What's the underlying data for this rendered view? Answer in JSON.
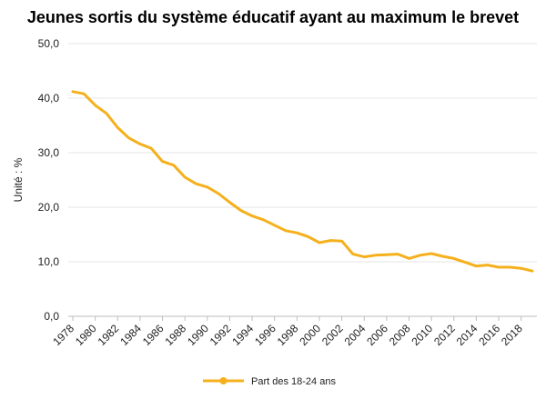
{
  "chart_data": {
    "type": "line",
    "title": "Jeunes sortis du système éducatif ayant au maximum le brevet",
    "xlabel": "",
    "ylabel": "Unité : %",
    "ylim": [
      0,
      50
    ],
    "y_ticks": [
      "0,0",
      "10,0",
      "20,0",
      "30,0",
      "40,0",
      "50,0"
    ],
    "x_tick_labels": [
      "1978",
      "1980",
      "1982",
      "1984",
      "1986",
      "1988",
      "1990",
      "1992",
      "1994",
      "1996",
      "1998",
      "2000",
      "2002",
      "2004",
      "2006",
      "2008",
      "2010",
      "2012",
      "2014",
      "2016",
      "2018"
    ],
    "x": [
      1978,
      1979,
      1980,
      1981,
      1982,
      1983,
      1984,
      1985,
      1986,
      1987,
      1988,
      1989,
      1990,
      1991,
      1992,
      1993,
      1994,
      1995,
      1996,
      1997,
      1998,
      1999,
      2000,
      2001,
      2002,
      2003,
      2004,
      2005,
      2006,
      2007,
      2008,
      2009,
      2010,
      2011,
      2012,
      2013,
      2014,
      2015,
      2016,
      2017,
      2018,
      2019
    ],
    "series": [
      {
        "name": "Part des 18-24 ans",
        "color": "#f5b01c",
        "values": [
          41.2,
          40.8,
          38.7,
          37.2,
          34.6,
          32.7,
          31.6,
          30.8,
          28.4,
          27.7,
          25.5,
          24.3,
          23.7,
          22.5,
          20.9,
          19.4,
          18.4,
          17.7,
          16.7,
          15.7,
          15.3,
          14.6,
          13.5,
          13.9,
          13.8,
          11.4,
          10.9,
          11.2,
          11.3,
          11.4,
          10.6,
          11.2,
          11.5,
          11.0,
          10.6,
          9.9,
          9.2,
          9.4,
          9.0,
          9.0,
          8.8,
          8.3
        ]
      }
    ],
    "grid": true,
    "legend_position": "bottom"
  }
}
